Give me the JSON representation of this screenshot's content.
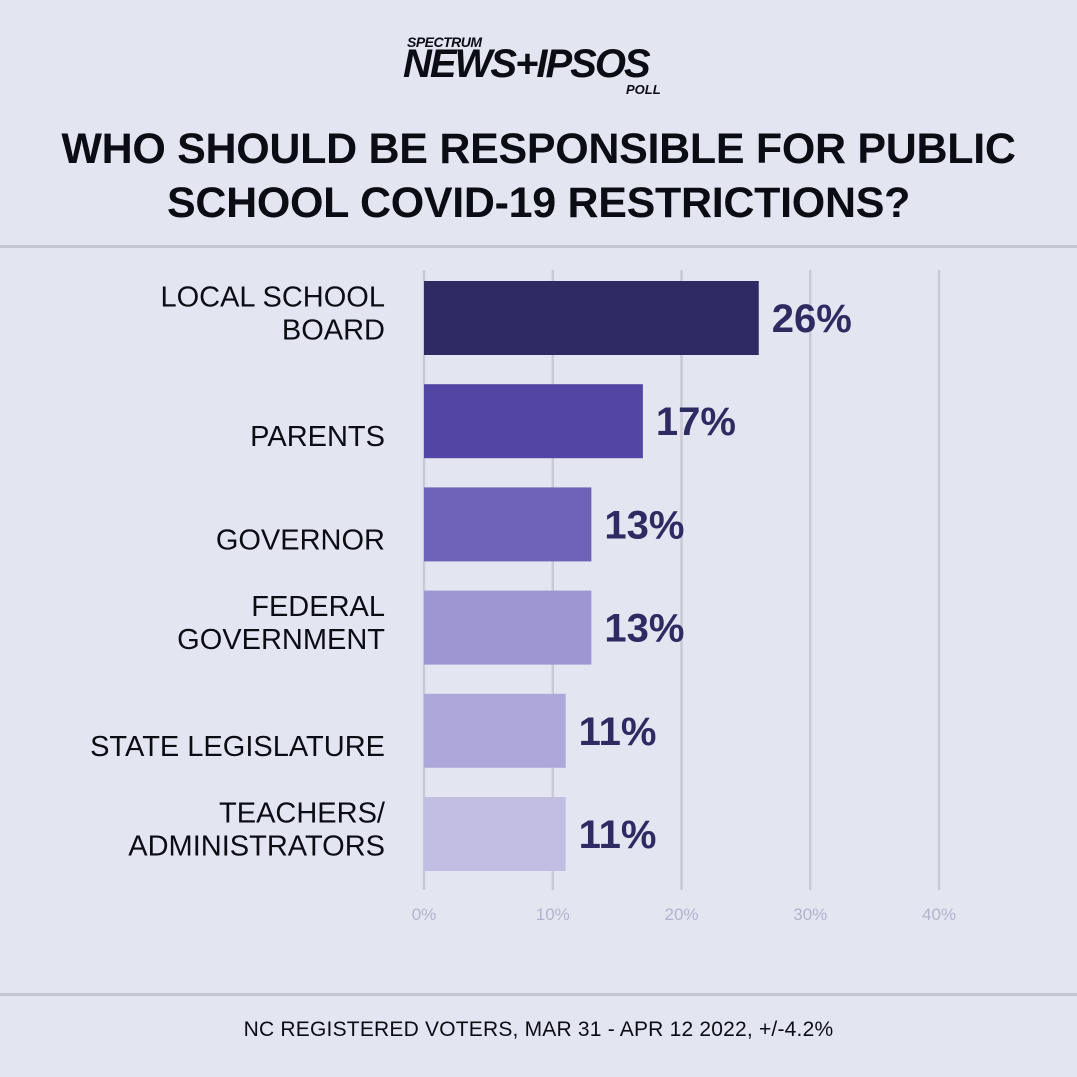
{
  "logo": {
    "line1": "SPECTRUM",
    "line2": "NEWS+IPSOS",
    "line3": "POLL"
  },
  "title": "WHO SHOULD BE RESPONSIBLE FOR PUBLIC SCHOOL COVID-19 RESTRICTIONS?",
  "footer": "NC REGISTERED VOTERS, MAR 31 - APR 12 2022, +/-4.2%",
  "colors": {
    "background": "#e3e5f0",
    "gridline": "#c9cad6",
    "value_label": "#2e2a62",
    "tick_label": "#b2b4cc"
  },
  "chart_data": {
    "type": "bar",
    "orientation": "horizontal",
    "title": "WHO SHOULD BE RESPONSIBLE FOR PUBLIC SCHOOL COVID-19 RESTRICTIONS?",
    "categories": [
      [
        "LOCAL SCHOOL",
        "BOARD"
      ],
      [
        "PARENTS"
      ],
      [
        "GOVERNOR"
      ],
      [
        "FEDERAL",
        "GOVERNMENT"
      ],
      [
        "STATE LEGISLATURE"
      ],
      [
        "TEACHERS/",
        "ADMINISTRATORS"
      ]
    ],
    "values": [
      26,
      17,
      13,
      13,
      11,
      11
    ],
    "value_labels": [
      "26%",
      "17%",
      "13%",
      "13%",
      "11%",
      "11%"
    ],
    "bar_colors": [
      "#2f2a63",
      "#5245a4",
      "#6e63b7",
      "#9d96d2",
      "#aea8da",
      "#c1bde3"
    ],
    "xlim": [
      0,
      40
    ],
    "xticks": [
      0,
      10,
      20,
      30,
      40
    ],
    "xtick_labels": [
      "0%",
      "10%",
      "20%",
      "30%",
      "40%"
    ],
    "grid": true,
    "xlabel": "",
    "ylabel": ""
  }
}
